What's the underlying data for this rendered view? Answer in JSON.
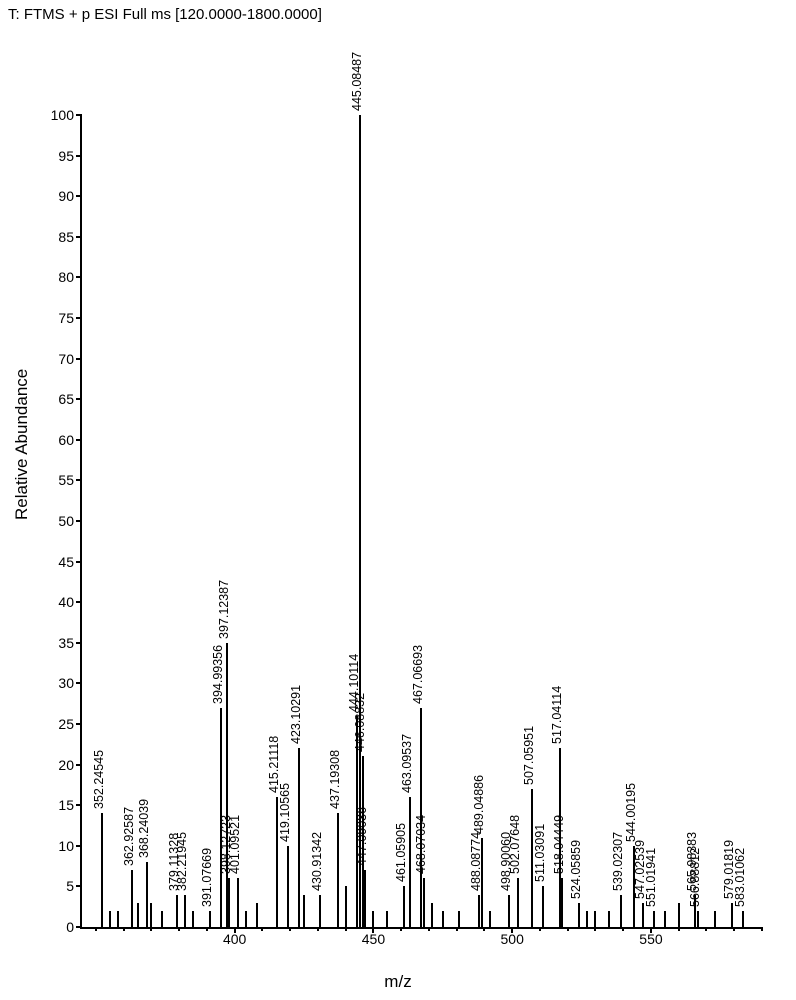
{
  "title": "T: FTMS + p ESI Full ms [120.0000-1800.0000]",
  "ylabel": "Relative Abundance",
  "xlabel": "m/z",
  "chart": {
    "type": "mass-spectrum",
    "background_color": "#ffffff",
    "axis_color": "#000000",
    "peak_color": "#000000",
    "text_color": "#000000",
    "title_fontsize": 15,
    "label_fontsize": 17,
    "tick_fontsize": 14,
    "peaklabel_fontsize": 12.5,
    "ylim": [
      0,
      100
    ],
    "ytick_step": 5,
    "xlim": [
      345,
      590
    ],
    "xticks": [
      400,
      450,
      500,
      550
    ],
    "xtick_minor_step": 10,
    "peaks": [
      {
        "mz": 352.24545,
        "intensity": 14,
        "label": "352.24545"
      },
      {
        "mz": 355,
        "intensity": 2
      },
      {
        "mz": 358,
        "intensity": 2
      },
      {
        "mz": 362.92587,
        "intensity": 7,
        "label": "362.92587"
      },
      {
        "mz": 365,
        "intensity": 3
      },
      {
        "mz": 368.24039,
        "intensity": 8,
        "label": "368.24039"
      },
      {
        "mz": 370,
        "intensity": 3
      },
      {
        "mz": 374,
        "intensity": 2
      },
      {
        "mz": 379.11328,
        "intensity": 4,
        "label": "379.11328"
      },
      {
        "mz": 382.21945,
        "intensity": 4,
        "label": "382.21945"
      },
      {
        "mz": 385,
        "intensity": 2
      },
      {
        "mz": 391.07669,
        "intensity": 2,
        "label": "391.07669"
      },
      {
        "mz": 394.99356,
        "intensity": 27,
        "label": "394.99356"
      },
      {
        "mz": 397.12387,
        "intensity": 35,
        "label": "397.12387"
      },
      {
        "mz": 398.12723,
        "intensity": 6,
        "label": "398.12723"
      },
      {
        "mz": 401.09521,
        "intensity": 6,
        "label": "401.09521"
      },
      {
        "mz": 404,
        "intensity": 2
      },
      {
        "mz": 408,
        "intensity": 3
      },
      {
        "mz": 415.21118,
        "intensity": 16,
        "label": "415.21118"
      },
      {
        "mz": 419.10565,
        "intensity": 10,
        "label": "419.10565"
      },
      {
        "mz": 423.10291,
        "intensity": 22,
        "label": "423.10291"
      },
      {
        "mz": 425,
        "intensity": 4
      },
      {
        "mz": 430.91342,
        "intensity": 4,
        "label": "430.91342"
      },
      {
        "mz": 437.19308,
        "intensity": 14,
        "label": "437.19308"
      },
      {
        "mz": 440,
        "intensity": 5
      },
      {
        "mz": 444.10114,
        "intensity": 26,
        "label": "444.10114"
      },
      {
        "mz": 445.08487,
        "intensity": 100,
        "label": "445.08487"
      },
      {
        "mz": 446.08832,
        "intensity": 21,
        "label": "446.08832"
      },
      {
        "mz": 447.09036,
        "intensity": 7,
        "label": "447.09036"
      },
      {
        "mz": 450,
        "intensity": 2
      },
      {
        "mz": 455,
        "intensity": 2
      },
      {
        "mz": 461.05905,
        "intensity": 5,
        "label": "461.05905"
      },
      {
        "mz": 463.09537,
        "intensity": 16,
        "label": "463.09537"
      },
      {
        "mz": 467.06693,
        "intensity": 27,
        "label": "467.06693"
      },
      {
        "mz": 468.07034,
        "intensity": 6,
        "label": "468.07034"
      },
      {
        "mz": 471,
        "intensity": 3
      },
      {
        "mz": 475,
        "intensity": 2
      },
      {
        "mz": 481,
        "intensity": 2
      },
      {
        "mz": 488.08774,
        "intensity": 4,
        "label": "488.08774"
      },
      {
        "mz": 489.04886,
        "intensity": 11,
        "label": "489.04886"
      },
      {
        "mz": 492,
        "intensity": 2
      },
      {
        "mz": 498.9006,
        "intensity": 4,
        "label": "498.90060"
      },
      {
        "mz": 502.07648,
        "intensity": 6,
        "label": "502.07648"
      },
      {
        "mz": 507.05951,
        "intensity": 17,
        "label": "507.05951"
      },
      {
        "mz": 511.03091,
        "intensity": 5,
        "label": "511.03091"
      },
      {
        "mz": 517.04114,
        "intensity": 22,
        "label": "517.04114"
      },
      {
        "mz": 518.04449,
        "intensity": 6,
        "label": "518.04449"
      },
      {
        "mz": 524.05859,
        "intensity": 3,
        "label": "524.05859"
      },
      {
        "mz": 527,
        "intensity": 2
      },
      {
        "mz": 530,
        "intensity": 2
      },
      {
        "mz": 535,
        "intensity": 2
      },
      {
        "mz": 539.02307,
        "intensity": 4,
        "label": "539.02307"
      },
      {
        "mz": 544.00195,
        "intensity": 10,
        "label": "544.00195"
      },
      {
        "mz": 547.02539,
        "intensity": 3,
        "label": "547.02539"
      },
      {
        "mz": 551.01941,
        "intensity": 2,
        "label": "551.01941"
      },
      {
        "mz": 555,
        "intensity": 2
      },
      {
        "mz": 560,
        "intensity": 3
      },
      {
        "mz": 565.98383,
        "intensity": 4,
        "label": "565.98383"
      },
      {
        "mz": 566.88812,
        "intensity": 2,
        "label": "566.88812"
      },
      {
        "mz": 573,
        "intensity": 2
      },
      {
        "mz": 579.01819,
        "intensity": 3,
        "label": "579.01819"
      },
      {
        "mz": 583.01062,
        "intensity": 2,
        "label": "583.01062"
      }
    ]
  }
}
